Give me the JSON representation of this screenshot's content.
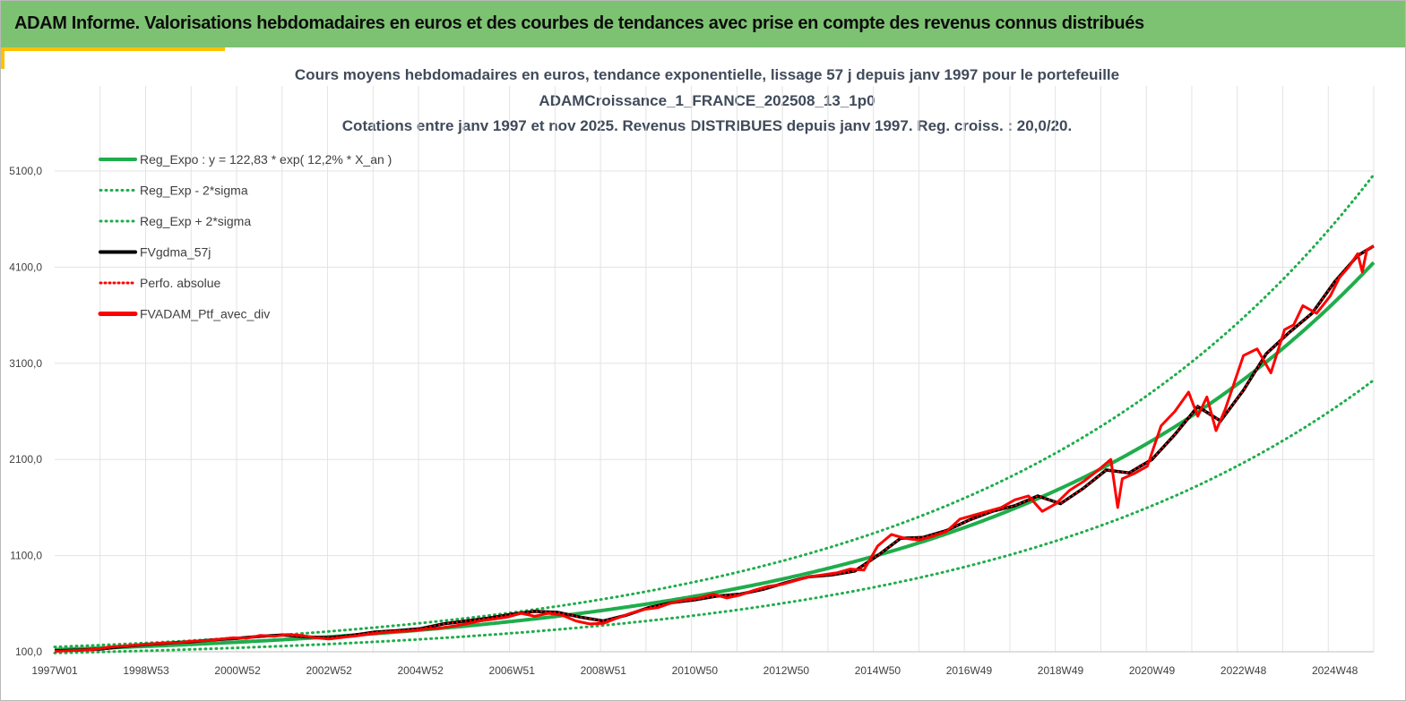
{
  "banner": {
    "title": "ADAM Informe. Valorisations hebdomadaires en euros et des courbes de tendances avec prise en compte des revenus connus distribués",
    "color": "#7dc272",
    "accent": "#ffc000"
  },
  "chart_data": {
    "type": "line",
    "title_lines": [
      "Cours moyens hebdomadaires  en euros, tendance exponentielle, lissage 57 j depuis janv 1997 pour le portefeuille",
      "ADAMCroissance_1_FRANCE_202508_13_1p0",
      "Cotations  entre janv 1997 et nov 2025. Revenus DISTRIBUES depuis janv 1997. Reg. croiss. : 20,0/20."
    ],
    "xlabel": "",
    "ylabel": "",
    "ylim": [
      100,
      5100
    ],
    "xlim": [
      1997.0,
      2025.85
    ],
    "yticks": [
      "100,0",
      "1100,0",
      "2100,0",
      "3100,0",
      "4100,0",
      "5100,0"
    ],
    "ytick_values": [
      100,
      1100,
      2100,
      3100,
      4100,
      5100
    ],
    "xticks": [
      "1997W01",
      "1998W53",
      "2000W52",
      "2002W52",
      "2004W52",
      "2006W51",
      "2008W51",
      "2010W50",
      "2012W50",
      "2014W50",
      "2016W49",
      "2018W49",
      "2020W49",
      "2022W48",
      "2024W48"
    ],
    "xtick_values": [
      1997,
      1999,
      2001,
      2003,
      2005,
      2007,
      2009,
      2011,
      2013,
      2015,
      2017,
      2019,
      2021,
      2023,
      2025
    ],
    "grid": true,
    "legend_position": "top-left",
    "trend": {
      "name": "Reg_Expo : y = 122,83 * exp( 12,2% *  X_an )",
      "a": 122.83,
      "rate": 0.122,
      "lower_name": "Reg_Exp - 2*sigma",
      "upper_name": "Reg_Exp + 2*sigma",
      "lower_factor": 0.705,
      "upper_factor": 1.22,
      "color": "#1fad4b"
    },
    "series": [
      {
        "name": "FVgdma_57j",
        "color": "#000000",
        "style": "solid",
        "x": [
          1997.0,
          1997.5,
          1998.0,
          1998.5,
          1999.0,
          1999.5,
          2000.0,
          2000.5,
          2001.0,
          2001.5,
          2002.0,
          2002.5,
          2003.0,
          2003.5,
          2004.0,
          2004.5,
          2005.0,
          2005.5,
          2006.0,
          2006.5,
          2007.0,
          2007.5,
          2008.0,
          2008.5,
          2009.0,
          2009.5,
          2010.0,
          2010.5,
          2011.0,
          2011.5,
          2012.0,
          2012.5,
          2013.0,
          2013.5,
          2014.0,
          2014.5,
          2015.0,
          2015.5,
          2016.0,
          2016.5,
          2017.0,
          2017.5,
          2018.0,
          2018.5,
          2019.0,
          2019.5,
          2020.0,
          2020.5,
          2021.0,
          2021.5,
          2022.0,
          2022.5,
          2023.0,
          2023.5,
          2024.0,
          2024.5,
          2025.0,
          2025.5,
          2025.85
        ],
        "values": [
          110,
          118,
          128,
          155,
          175,
          190,
          205,
          225,
          240,
          260,
          275,
          255,
          245,
          270,
          305,
          320,
          340,
          390,
          420,
          450,
          490,
          520,
          510,
          460,
          420,
          480,
          560,
          610,
          640,
          680,
          700,
          750,
          820,
          880,
          900,
          940,
          1100,
          1280,
          1290,
          1360,
          1470,
          1560,
          1620,
          1720,
          1640,
          1800,
          1990,
          1960,
          2100,
          2360,
          2650,
          2500,
          2820,
          3200,
          3420,
          3620,
          3950,
          4220,
          4320
        ]
      },
      {
        "name": "Perfo. absolue",
        "color": "#ff0000",
        "style": "dotted",
        "x": [
          1997.0,
          1997.5,
          1998.0,
          1998.5,
          1999.0,
          1999.5,
          2000.0,
          2000.5,
          2001.0,
          2001.5,
          2002.0,
          2002.5,
          2003.0,
          2003.5,
          2004.0,
          2004.5,
          2005.0,
          2005.5,
          2006.0,
          2006.5,
          2007.0,
          2007.5,
          2008.0,
          2008.5,
          2009.0,
          2009.5,
          2010.0,
          2010.5,
          2011.0,
          2011.5,
          2012.0,
          2012.5,
          2013.0,
          2013.5,
          2014.0,
          2014.5,
          2015.0,
          2015.5,
          2016.0,
          2016.5,
          2017.0,
          2017.5,
          2018.0,
          2018.5,
          2019.0,
          2019.5,
          2020.0,
          2020.5,
          2021.0,
          2021.5,
          2022.0,
          2022.5,
          2023.0,
          2023.5,
          2024.0,
          2024.5,
          2025.0,
          2025.5,
          2025.85
        ],
        "values": [
          110,
          118,
          128,
          155,
          175,
          190,
          205,
          225,
          240,
          260,
          275,
          255,
          245,
          270,
          305,
          320,
          340,
          390,
          420,
          450,
          490,
          520,
          510,
          460,
          420,
          480,
          560,
          610,
          640,
          680,
          700,
          750,
          820,
          880,
          900,
          940,
          1100,
          1280,
          1290,
          1360,
          1470,
          1560,
          1620,
          1720,
          1640,
          1800,
          1990,
          1960,
          2100,
          2360,
          2650,
          2500,
          2820,
          3200,
          3420,
          3620,
          3950,
          4220,
          4320
        ]
      },
      {
        "name": "FVADAM_Ptf_avec_div",
        "color": "#ff0000",
        "style": "solid",
        "x": [
          1997.0,
          1997.3,
          1997.6,
          1997.9,
          1998.2,
          1998.5,
          1998.8,
          1999.1,
          1999.4,
          1999.7,
          2000.0,
          2000.3,
          2000.6,
          2000.9,
          2001.2,
          2001.5,
          2001.8,
          2002.1,
          2002.4,
          2002.7,
          2003.0,
          2003.3,
          2003.6,
          2003.9,
          2004.2,
          2004.5,
          2004.8,
          2005.1,
          2005.4,
          2005.7,
          2006.0,
          2006.3,
          2006.6,
          2006.9,
          2007.2,
          2007.5,
          2007.8,
          2008.1,
          2008.4,
          2008.7,
          2009.0,
          2009.3,
          2009.6,
          2009.9,
          2010.2,
          2010.5,
          2010.8,
          2011.1,
          2011.4,
          2011.7,
          2012.0,
          2012.3,
          2012.6,
          2012.9,
          2013.2,
          2013.5,
          2013.8,
          2014.1,
          2014.4,
          2014.7,
          2015.0,
          2015.3,
          2015.6,
          2015.9,
          2016.2,
          2016.5,
          2016.8,
          2017.1,
          2017.4,
          2017.7,
          2018.0,
          2018.3,
          2018.6,
          2018.9,
          2019.2,
          2019.5,
          2019.8,
          2020.1,
          2020.25,
          2020.35,
          2020.6,
          2020.9,
          2021.2,
          2021.5,
          2021.8,
          2022.0,
          2022.2,
          2022.4,
          2022.6,
          2022.8,
          2023.0,
          2023.3,
          2023.6,
          2023.9,
          2024.1,
          2024.3,
          2024.6,
          2024.9,
          2025.1,
          2025.3,
          2025.5,
          2025.6,
          2025.7,
          2025.85
        ],
        "values": [
          105,
          112,
          118,
          126,
          150,
          160,
          170,
          182,
          190,
          195,
          210,
          215,
          230,
          245,
          240,
          270,
          260,
          280,
          270,
          245,
          232,
          250,
          265,
          285,
          300,
          310,
          318,
          335,
          345,
          365,
          390,
          420,
          440,
          460,
          500,
          470,
          500,
          480,
          420,
          390,
          395,
          450,
          500,
          540,
          560,
          610,
          640,
          660,
          700,
          660,
          690,
          740,
          780,
          800,
          840,
          880,
          900,
          920,
          960,
          950,
          1200,
          1320,
          1280,
          1260,
          1300,
          1350,
          1480,
          1520,
          1560,
          1600,
          1680,
          1720,
          1560,
          1640,
          1780,
          1870,
          1980,
          2100,
          1600,
          1900,
          1950,
          2030,
          2450,
          2600,
          2800,
          2550,
          2750,
          2400,
          2620,
          2900,
          3180,
          3250,
          3000,
          3450,
          3500,
          3700,
          3620,
          3800,
          3990,
          4100,
          4240,
          4050,
          4280,
          4320
        ]
      }
    ]
  }
}
